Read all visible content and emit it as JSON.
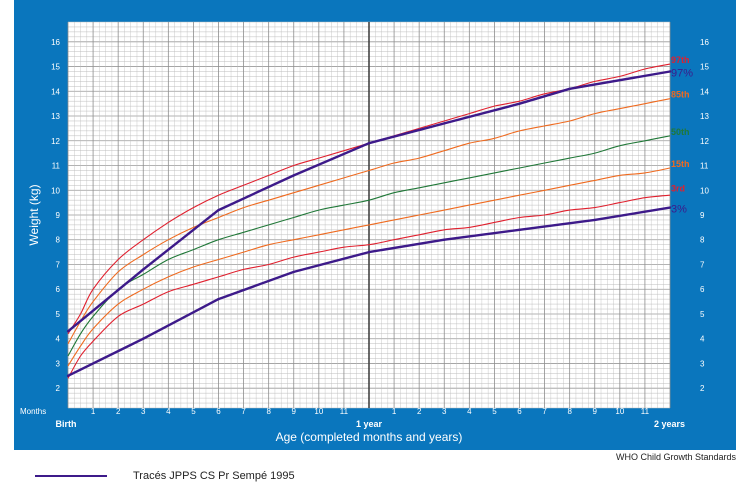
{
  "chart_data": {
    "type": "line",
    "title": "",
    "xlabel": "Age (completed months and years)",
    "ylabel": "Weight (kg)",
    "xlim": [
      0,
      24
    ],
    "ylim": [
      1.2,
      16.8
    ],
    "y_ticks": [
      2,
      3,
      4,
      5,
      6,
      7,
      8,
      9,
      10,
      11,
      12,
      13,
      14,
      15,
      16
    ],
    "months_row_label": "Months",
    "x_month_ticks": [
      {
        "x": 1,
        "label": "1"
      },
      {
        "x": 2,
        "label": "2"
      },
      {
        "x": 3,
        "label": "3"
      },
      {
        "x": 4,
        "label": "4"
      },
      {
        "x": 5,
        "label": "5"
      },
      {
        "x": 6,
        "label": "6"
      },
      {
        "x": 7,
        "label": "7"
      },
      {
        "x": 8,
        "label": "8"
      },
      {
        "x": 9,
        "label": "9"
      },
      {
        "x": 10,
        "label": "10"
      },
      {
        "x": 11,
        "label": "11"
      },
      {
        "x": 13,
        "label": "1"
      },
      {
        "x": 14,
        "label": "2"
      },
      {
        "x": 15,
        "label": "3"
      },
      {
        "x": 16,
        "label": "4"
      },
      {
        "x": 17,
        "label": "5"
      },
      {
        "x": 18,
        "label": "6"
      },
      {
        "x": 19,
        "label": "7"
      },
      {
        "x": 20,
        "label": "8"
      },
      {
        "x": 21,
        "label": "9"
      },
      {
        "x": 22,
        "label": "10"
      },
      {
        "x": 23,
        "label": "11"
      }
    ],
    "x_year_labels": [
      {
        "x": 0,
        "label": "Birth"
      },
      {
        "x": 12,
        "label": "1 year"
      },
      {
        "x": 24,
        "label": "2 years"
      }
    ],
    "series": [
      {
        "name": "97th",
        "color": "#e0202e",
        "x": [
          0,
          0.5,
          1,
          2,
          3,
          4,
          5,
          6,
          7,
          8,
          9,
          10,
          11,
          12,
          13,
          14,
          15,
          16,
          17,
          18,
          19,
          20,
          21,
          22,
          23,
          24
        ],
        "y": [
          4.2,
          5.0,
          6.0,
          7.2,
          8.0,
          8.7,
          9.3,
          9.8,
          10.2,
          10.6,
          11.0,
          11.3,
          11.6,
          11.9,
          12.2,
          12.5,
          12.8,
          13.1,
          13.4,
          13.6,
          13.9,
          14.1,
          14.4,
          14.6,
          14.9,
          15.1
        ]
      },
      {
        "name": "85th",
        "color": "#ef6a1f",
        "x": [
          0,
          0.5,
          1,
          2,
          3,
          4,
          5,
          6,
          7,
          8,
          9,
          10,
          11,
          12,
          13,
          14,
          15,
          16,
          17,
          18,
          19,
          20,
          21,
          22,
          23,
          24
        ],
        "y": [
          3.8,
          4.7,
          5.5,
          6.7,
          7.4,
          8.0,
          8.5,
          8.9,
          9.3,
          9.6,
          9.9,
          10.2,
          10.5,
          10.8,
          11.1,
          11.3,
          11.6,
          11.9,
          12.1,
          12.4,
          12.6,
          12.8,
          13.1,
          13.3,
          13.5,
          13.7
        ]
      },
      {
        "name": "50th",
        "color": "#207838",
        "x": [
          0,
          0.5,
          1,
          2,
          3,
          4,
          5,
          6,
          7,
          8,
          9,
          10,
          11,
          12,
          13,
          14,
          15,
          16,
          17,
          18,
          19,
          20,
          21,
          22,
          23,
          24
        ],
        "y": [
          3.3,
          4.2,
          4.9,
          6.0,
          6.6,
          7.2,
          7.6,
          8.0,
          8.3,
          8.6,
          8.9,
          9.2,
          9.4,
          9.6,
          9.9,
          10.1,
          10.3,
          10.5,
          10.7,
          10.9,
          11.1,
          11.3,
          11.5,
          11.8,
          12.0,
          12.2
        ]
      },
      {
        "name": "15th",
        "color": "#ef6a1f",
        "x": [
          0,
          0.5,
          1,
          2,
          3,
          4,
          5,
          6,
          7,
          8,
          9,
          10,
          11,
          12,
          13,
          14,
          15,
          16,
          17,
          18,
          19,
          20,
          21,
          22,
          23,
          24
        ],
        "y": [
          2.9,
          3.7,
          4.4,
          5.4,
          6.0,
          6.5,
          6.9,
          7.2,
          7.5,
          7.8,
          8.0,
          8.2,
          8.4,
          8.6,
          8.8,
          9.0,
          9.2,
          9.4,
          9.6,
          9.8,
          10.0,
          10.2,
          10.4,
          10.6,
          10.7,
          10.9
        ]
      },
      {
        "name": "3rd",
        "color": "#e0202e",
        "x": [
          0,
          0.5,
          1,
          2,
          3,
          4,
          5,
          6,
          7,
          8,
          9,
          10,
          11,
          12,
          13,
          14,
          15,
          16,
          17,
          18,
          19,
          20,
          21,
          22,
          23,
          24
        ],
        "y": [
          2.4,
          3.3,
          3.9,
          4.9,
          5.4,
          5.9,
          6.2,
          6.5,
          6.8,
          7.0,
          7.3,
          7.5,
          7.7,
          7.8,
          8.0,
          8.2,
          8.4,
          8.5,
          8.7,
          8.9,
          9.0,
          9.2,
          9.3,
          9.5,
          9.7,
          9.8
        ]
      },
      {
        "name": "97%",
        "color": "#3d1a8a",
        "thick": true,
        "x": [
          0,
          3,
          6,
          9,
          12,
          15,
          18,
          20,
          24
        ],
        "y": [
          4.3,
          6.8,
          9.2,
          10.6,
          11.9,
          12.7,
          13.5,
          14.1,
          14.8
        ]
      },
      {
        "name": "3%",
        "color": "#3d1a8a",
        "thick": true,
        "x": [
          0,
          3,
          6,
          9,
          12,
          15,
          18,
          21,
          24
        ],
        "y": [
          2.5,
          4.0,
          5.6,
          6.7,
          7.5,
          8.0,
          8.4,
          8.8,
          9.3
        ]
      }
    ],
    "end_labels": [
      {
        "text": "97th",
        "x": 24,
        "y": 15.1,
        "color": "#e0202e"
      },
      {
        "text": "97%",
        "x": 24,
        "y": 14.8,
        "color": "#3d1a8a"
      },
      {
        "text": "85th",
        "x": 24,
        "y": 13.7,
        "color": "#ef6a1f"
      },
      {
        "text": "50th",
        "x": 24,
        "y": 12.2,
        "color": "#207838"
      },
      {
        "text": "15th",
        "x": 24,
        "y": 10.9,
        "color": "#ef6a1f"
      },
      {
        "text": "3rd",
        "x": 24,
        "y": 9.9,
        "color": "#e0202e"
      },
      {
        "text": "3%",
        "x": 24,
        "y": 9.3,
        "color": "#3d1a8a"
      }
    ]
  },
  "colors": {
    "frame": "#0a76bd",
    "grid": "#bdbdbd",
    "year_line": "#444444",
    "custom_curve": "#3d1a8a"
  },
  "footer": {
    "source": "WHO Child Growth Standards",
    "legend_label": "Tracés JPPS CS Pr Sempé 1995"
  }
}
